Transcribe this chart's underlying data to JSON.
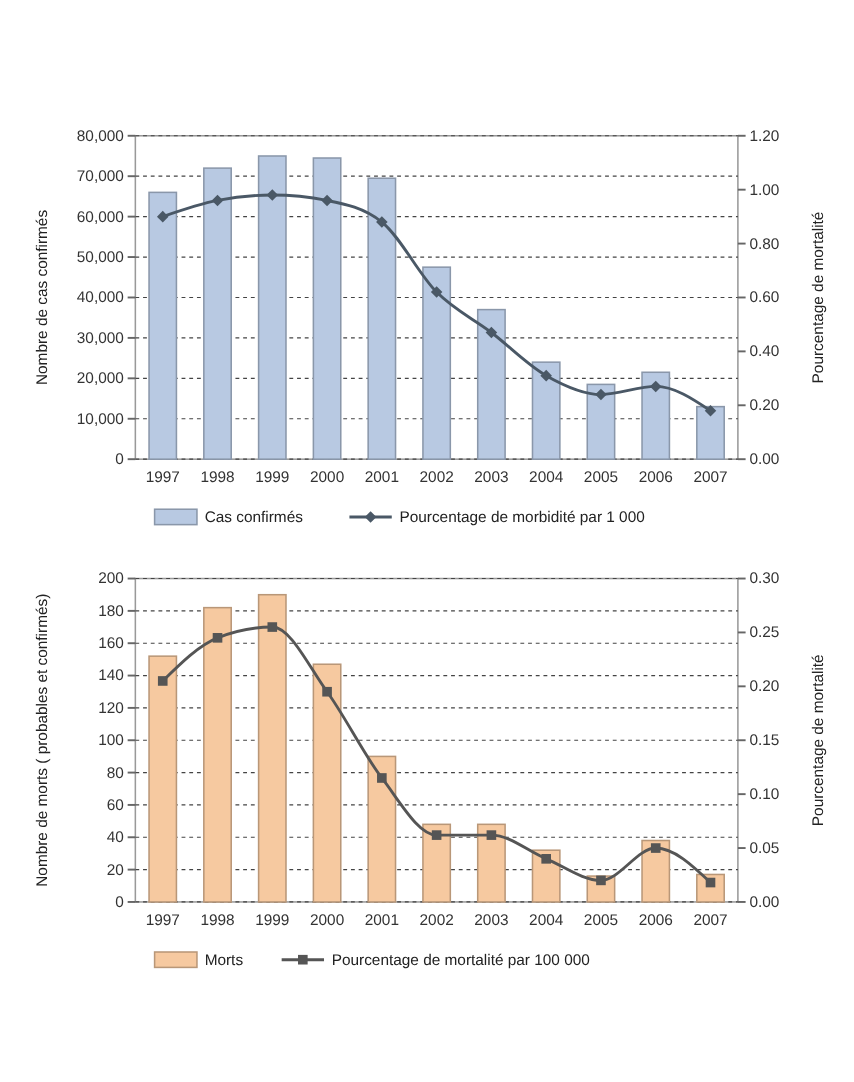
{
  "chart_data": [
    {
      "type": "bar",
      "categories": [
        "1997",
        "1998",
        "1999",
        "2000",
        "2001",
        "2002",
        "2003",
        "2004",
        "2005",
        "2006",
        "2007"
      ],
      "ylabel": "Nombre de cas confirmés",
      "y2label": "Pourcentage de mortalité",
      "ylim": [
        0,
        80000
      ],
      "yticks": [
        {
          "value": 0,
          "label": "0"
        },
        {
          "value": 10000,
          "label": "10,000"
        },
        {
          "value": 20000,
          "label": "20,000"
        },
        {
          "value": 30000,
          "label": "30,000"
        },
        {
          "value": 40000,
          "label": "40,000"
        },
        {
          "value": 50000,
          "label": "50,000"
        },
        {
          "value": 60000,
          "label": "60,000"
        },
        {
          "value": 70000,
          "label": "70,000"
        },
        {
          "value": 80000,
          "label": "80,000"
        }
      ],
      "y2lim": [
        0,
        1.2
      ],
      "y2ticks": [
        {
          "value": 0,
          "label": "0.00"
        },
        {
          "value": 0.2,
          "label": "0.20"
        },
        {
          "value": 0.4,
          "label": "0.40"
        },
        {
          "value": 0.6,
          "label": "0.60"
        },
        {
          "value": 0.8,
          "label": "0.80"
        },
        {
          "value": 1,
          "label": "1.00"
        },
        {
          "value": 1.2,
          "label": "1.20"
        }
      ],
      "grid": "y",
      "legend": "bottom",
      "series": [
        {
          "name": "Cas confirmés",
          "color": "#b8c9e2",
          "values": [
            66000,
            72000,
            75000,
            74500,
            69500,
            47500,
            37000,
            24000,
            18500,
            21500,
            13000
          ]
        },
        {
          "name": "Pourcentage de morbidité par 1 000",
          "type": "line",
          "axis": "y2",
          "color": "#4a5866",
          "marker": "diamond",
          "values": [
            0.9,
            0.96,
            0.98,
            0.96,
            0.88,
            0.62,
            0.47,
            0.31,
            0.24,
            0.27,
            0.18
          ]
        }
      ]
    },
    {
      "type": "bar",
      "categories": [
        "1997",
        "1998",
        "1999",
        "2000",
        "2001",
        "2002",
        "2003",
        "2004",
        "2005",
        "2006",
        "2007"
      ],
      "ylabel": "Nombre de morts ( probables et confirmés)",
      "y2label": "Pourcentage de mortalité",
      "ylim": [
        0,
        200
      ],
      "yticks": [
        0,
        20,
        40,
        60,
        80,
        100,
        120,
        140,
        160,
        180,
        200
      ],
      "y2lim": [
        0,
        0.3
      ],
      "y2ticks": [
        {
          "value": 0,
          "label": "0.00"
        },
        {
          "value": 0.05,
          "label": "0.05"
        },
        {
          "value": 0.1,
          "label": "0.10"
        },
        {
          "value": 0.15,
          "label": "0.15"
        },
        {
          "value": 0.2,
          "label": "0.20"
        },
        {
          "value": 0.25,
          "label": "0.25"
        },
        {
          "value": 0.3,
          "label": "0.30"
        }
      ],
      "grid": "y",
      "legend": "bottom",
      "series": [
        {
          "name": "Morts",
          "color": "#f6c9a0",
          "values": [
            152,
            182,
            190,
            147,
            90,
            48,
            48,
            32,
            16,
            38,
            17
          ]
        },
        {
          "name": "Pourcentage de mortalité par 100 000",
          "type": "line",
          "axis": "y2",
          "color": "#555555",
          "marker": "square",
          "values": [
            0.205,
            0.245,
            0.255,
            0.195,
            0.115,
            0.062,
            0.062,
            0.04,
            0.02,
            0.05,
            0.018
          ]
        }
      ]
    }
  ]
}
